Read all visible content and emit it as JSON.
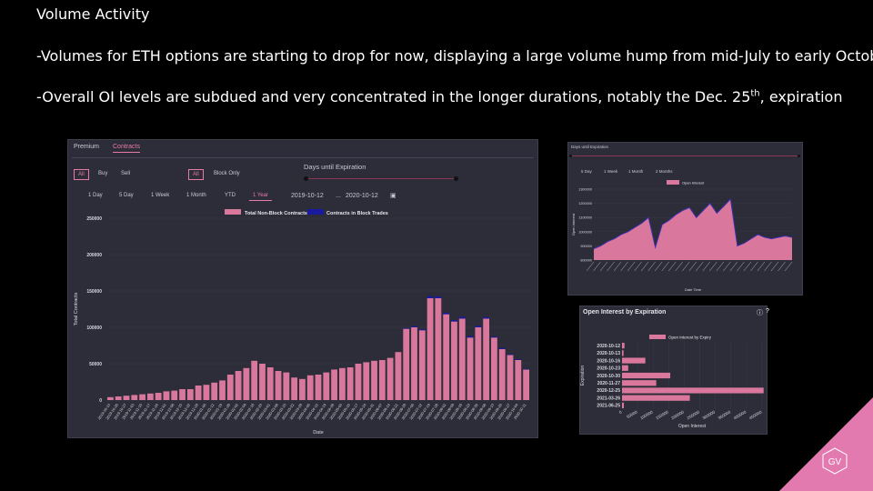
{
  "slide": {
    "title": "Volume Activity",
    "bullet1": "-Volumes for ETH options are starting to drop for now, displaying a large volume hump from mid-July to early October",
    "bullet2_main": "-Overall OI levels are subdued and very concentrated in the longer durations, notably the Dec. 25",
    "bullet2_sup": "th",
    "bullet2_end": ", expiration",
    "logo_text": "GV"
  },
  "panel_volume": {
    "tabs": [
      "Premium",
      "Contracts"
    ],
    "active_tab": "Contracts",
    "side_buttons": [
      "All",
      "Buy",
      "Sell"
    ],
    "type_buttons": [
      "All",
      "Block Only"
    ],
    "days_label": "Days until Expiration",
    "periods": [
      "1 Day",
      "5 Day",
      "1 Week",
      "1 Month",
      "YTD",
      "1 Year"
    ],
    "active_period": "1 Year",
    "date_from": "2019-10-12",
    "date_sep": "...",
    "date_to": "2020-10-12",
    "calendar_icon": "calendar-icon"
  },
  "panel_oi_time": {
    "header": "Days until Expiration",
    "periods": [
      "5 Day",
      "1 Week",
      "1 Month",
      "2 Months"
    ]
  },
  "panel_oi_expiry": {
    "title": "Open Interest by Expiration",
    "icons": [
      "info-icon",
      "help-icon"
    ]
  },
  "chart_data": [
    {
      "type": "bar",
      "stacked": true,
      "xlabel": "Date",
      "ylabel": "Total Contracts",
      "ylim": [
        0,
        250000
      ],
      "yticks": [
        "0",
        "50000",
        "100000",
        "150000",
        "200000",
        "250000"
      ],
      "x_tick_labels": [
        "2019-10-13",
        "2019-10-20",
        "2019-10-27",
        "2019-11-03",
        "2019-11-10",
        "2019-11-17",
        "2019-11-24",
        "2019-12-01",
        "2019-12-08",
        "2019-12-15",
        "2019-12-22",
        "2019-12-29",
        "2020-01-05",
        "2020-01-12",
        "2020-01-19",
        "2020-01-26",
        "2020-02-02",
        "2020-02-09",
        "2020-02-16",
        "2020-02-23",
        "2020-03-01",
        "2020-03-08",
        "2020-03-15",
        "2020-03-22",
        "2020-03-29",
        "2020-04-05",
        "2020-04-12",
        "2020-04-19",
        "2020-04-26",
        "2020-05-03",
        "2020-05-10",
        "2020-05-17",
        "2020-05-24",
        "2020-05-31",
        "2020-06-07",
        "2020-06-14",
        "2020-06-21",
        "2020-06-28",
        "2020-07-05",
        "2020-07-12",
        "2020-07-19",
        "2020-07-26",
        "2020-08-02",
        "2020-08-09",
        "2020-08-16",
        "2020-08-23",
        "2020-08-30",
        "2020-09-06",
        "2020-09-13",
        "2020-09-20",
        "2020-09-27",
        "2020-10-04",
        "2020-10-11"
      ],
      "legend_position": "top",
      "series": [
        {
          "name": "Total Non-Block Contracts",
          "color": "#d9779c",
          "values": [
            4000,
            5000,
            6000,
            7000,
            8000,
            9000,
            10000,
            12000,
            13000,
            15000,
            15000,
            20000,
            21000,
            24000,
            27000,
            35000,
            40000,
            44000,
            54000,
            50000,
            45000,
            40000,
            38000,
            31000,
            29000,
            34000,
            35000,
            38000,
            42000,
            44000,
            45000,
            50000,
            52000,
            54000,
            55000,
            58000,
            66000,
            98000,
            100000,
            96000,
            140000,
            140000,
            118000,
            108000,
            112000,
            86000,
            100000,
            112000,
            86000,
            70000,
            62000,
            55000,
            42000
          ]
        },
        {
          "name": "Contracts in Block Trades",
          "color": "#1a1a9e",
          "values": [
            0,
            0,
            0,
            0,
            0,
            0,
            0,
            0,
            0,
            0,
            0,
            0,
            0,
            0,
            0,
            0,
            0,
            0,
            0,
            0,
            0,
            0,
            0,
            0,
            0,
            0,
            0,
            0,
            0,
            0,
            0,
            0,
            0,
            0,
            0,
            0,
            0,
            1000,
            1500,
            1500,
            3000,
            2500,
            2000,
            2000,
            2500,
            2000,
            2000,
            2000,
            1500,
            1500,
            1000,
            1000,
            800
          ]
        }
      ]
    },
    {
      "type": "area",
      "xlabel": "Date Time",
      "ylabel": "Open Interest",
      "ylim": [
        800000,
        1300000
      ],
      "yticks": [
        "800000",
        "900000",
        "1000000",
        "1100000",
        "1200000",
        "1300000"
      ],
      "legend": [
        "Open Interest"
      ],
      "legend_position": "top",
      "series": [
        {
          "name": "Open Interest",
          "color": "#d9779c",
          "values": [
            880000,
            900000,
            930000,
            950000,
            980000,
            1000000,
            1030000,
            1060000,
            1100000,
            890000,
            1050000,
            1080000,
            1120000,
            1150000,
            1170000,
            1100000,
            1150000,
            1200000,
            1130000,
            1180000,
            1230000,
            900000,
            920000,
            950000,
            980000,
            960000,
            950000,
            960000,
            970000,
            960000
          ]
        }
      ]
    },
    {
      "type": "bar",
      "orientation": "horizontal",
      "xlabel": "Open Interest",
      "ylabel": "Expiration",
      "xlim": [
        0,
        450000
      ],
      "xticks": [
        "0",
        "50000",
        "100000",
        "150000",
        "200000",
        "250000",
        "300000",
        "350000",
        "400000",
        "450000"
      ],
      "legend": [
        "Open Interest by Expiry"
      ],
      "legend_position": "top",
      "categories": [
        "2020-10-12",
        "2020-10-13",
        "2020-10-16",
        "2020-10-23",
        "2020-10-30",
        "2020-11-27",
        "2020-12-25",
        "2021-03-26",
        "2021-06-25"
      ],
      "series": [
        {
          "name": "Open Interest by Expiry",
          "color": "#d9779c",
          "values": [
            8000,
            5000,
            75000,
            20000,
            155000,
            110000,
            455000,
            218000,
            6000
          ]
        }
      ]
    }
  ]
}
